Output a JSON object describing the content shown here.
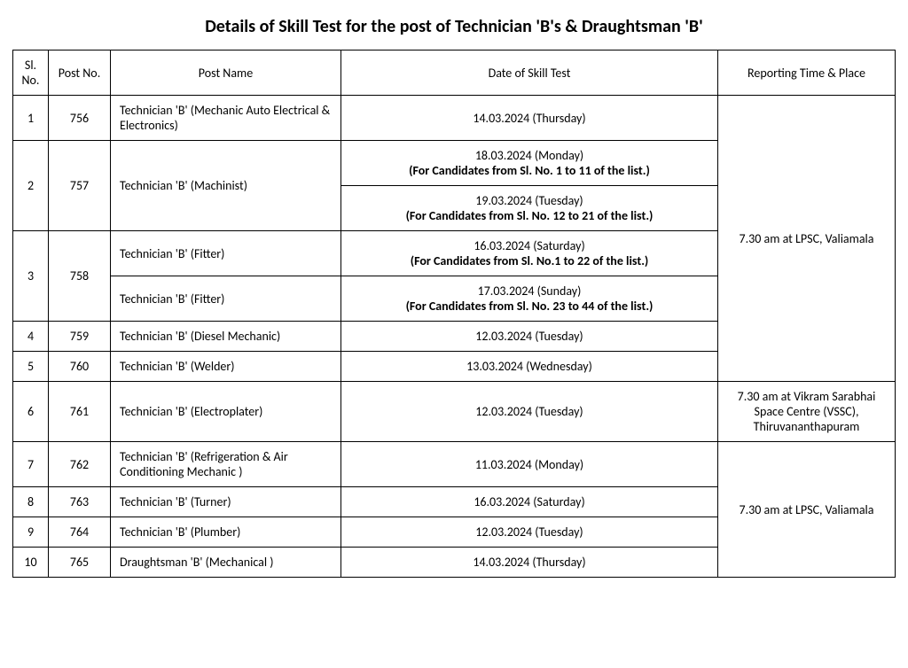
{
  "title": "Details of Skill Test for the post of Technician 'B's & Draughtsman 'B'",
  "headers": {
    "sl": "Sl.\nNo.",
    "post_no": "Post No.",
    "post_name": "Post Name",
    "date": "Date of Skill Test",
    "reporting": "Reporting Time & Place"
  },
  "reporting": {
    "lpsc1": "7.30 am at LPSC, Valiamala",
    "vssc": "7.30 am at Vikram Sarabhai Space Centre (VSSC), Thiruvananthapuram",
    "lpsc2": "7.30 am at LPSC, Valiamala"
  },
  "rows": {
    "r1": {
      "sl": "1",
      "post_no": "756",
      "name": "Technician 'B' (Mechanic Auto Electrical & Electronics)",
      "date": "14.03.2024 (Thursday)"
    },
    "r2": {
      "sl": "2",
      "post_no": "757",
      "name": "Technician 'B' (Machinist)",
      "date_a": "18.03.2024 (Monday)",
      "sub_a": "(For Candidates from Sl. No. 1 to 11 of the list.)",
      "date_b": "19.03.2024 (Tuesday)",
      "sub_b": "(For Candidates from Sl. No. 12 to 21 of the list.)"
    },
    "r3": {
      "sl": "3",
      "post_no": "758",
      "name_a": "Technician 'B' (Fitter)",
      "date_a": "16.03.2024 (Saturday)",
      "sub_a": "(For Candidates from Sl. No.1 to 22 of the list.)",
      "name_b": "Technician 'B' (Fitter)",
      "date_b": "17.03.2024 (Sunday)",
      "sub_b": "(For Candidates from Sl. No. 23 to 44 of the list.)"
    },
    "r4": {
      "sl": "4",
      "post_no": "759",
      "name": "Technician 'B' (Diesel Mechanic)",
      "date": "12.03.2024 (Tuesday)"
    },
    "r5": {
      "sl": "5",
      "post_no": "760",
      "name": "Technician 'B' (Welder)",
      "date": "13.03.2024 (Wednesday)"
    },
    "r6": {
      "sl": "6",
      "post_no": "761",
      "name": "Technician 'B' (Electroplater)",
      "date": "12.03.2024 (Tuesday)"
    },
    "r7": {
      "sl": "7",
      "post_no": "762",
      "name": "Technician 'B' (Refrigeration & Air Conditioning Mechanic )",
      "date": "11.03.2024 (Monday)"
    },
    "r8": {
      "sl": "8",
      "post_no": "763",
      "name": "Technician 'B' (Turner)",
      "date": "16.03.2024 (Saturday)"
    },
    "r9": {
      "sl": "9",
      "post_no": "764",
      "name": "Technician 'B' (Plumber)",
      "date": "12.03.2024 (Tuesday)"
    },
    "r10": {
      "sl": "10",
      "post_no": "765",
      "name": "Draughtsman 'B' (Mechanical )",
      "date": "14.03.2024 (Thursday)"
    }
  }
}
